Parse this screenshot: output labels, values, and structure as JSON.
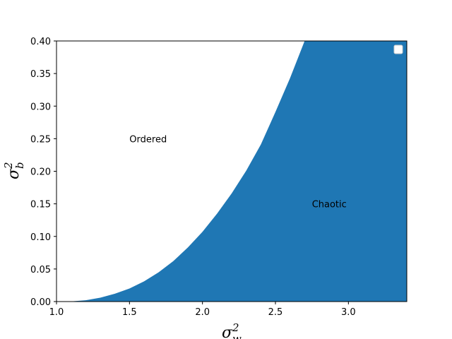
{
  "chart_data": {
    "type": "area",
    "x_axis": {
      "label_symbol": "σ",
      "label_sup": "2",
      "label_sub": "w",
      "lim": [
        1.0,
        3.4
      ],
      "ticks": [
        1.0,
        1.5,
        2.0,
        2.5,
        3.0
      ],
      "tick_labels": [
        "1.0",
        "1.5",
        "2.0",
        "2.5",
        "3.0"
      ]
    },
    "y_axis": {
      "label_symbol": "σ",
      "label_sup": "2",
      "label_sub": "b",
      "lim": [
        0.0,
        0.4
      ],
      "ticks": [
        0.0,
        0.05,
        0.1,
        0.15,
        0.2,
        0.25,
        0.3,
        0.35,
        0.4
      ],
      "tick_labels": [
        "0.00",
        "0.05",
        "0.10",
        "0.15",
        "0.20",
        "0.25",
        "0.30",
        "0.35",
        "0.40"
      ]
    },
    "boundary": {
      "x": [
        1.0,
        1.1,
        1.2,
        1.3,
        1.4,
        1.5,
        1.6,
        1.7,
        1.8,
        1.9,
        2.0,
        2.1,
        2.2,
        2.3,
        2.4,
        2.5,
        2.6,
        2.7
      ],
      "y": [
        0.0,
        0.0003,
        0.002,
        0.006,
        0.012,
        0.02,
        0.031,
        0.045,
        0.062,
        0.083,
        0.107,
        0.135,
        0.166,
        0.201,
        0.241,
        0.291,
        0.343,
        0.4
      ]
    },
    "filled_region": "below-right of boundary",
    "fill_color": "#1f77b4",
    "annotations": [
      {
        "text": "Ordered",
        "x": 1.5,
        "y": 0.25
      },
      {
        "text": "Chaotic",
        "x": 2.75,
        "y": 0.15
      }
    ],
    "legend": {
      "placement": "upper right",
      "entries": []
    },
    "grid": false
  }
}
